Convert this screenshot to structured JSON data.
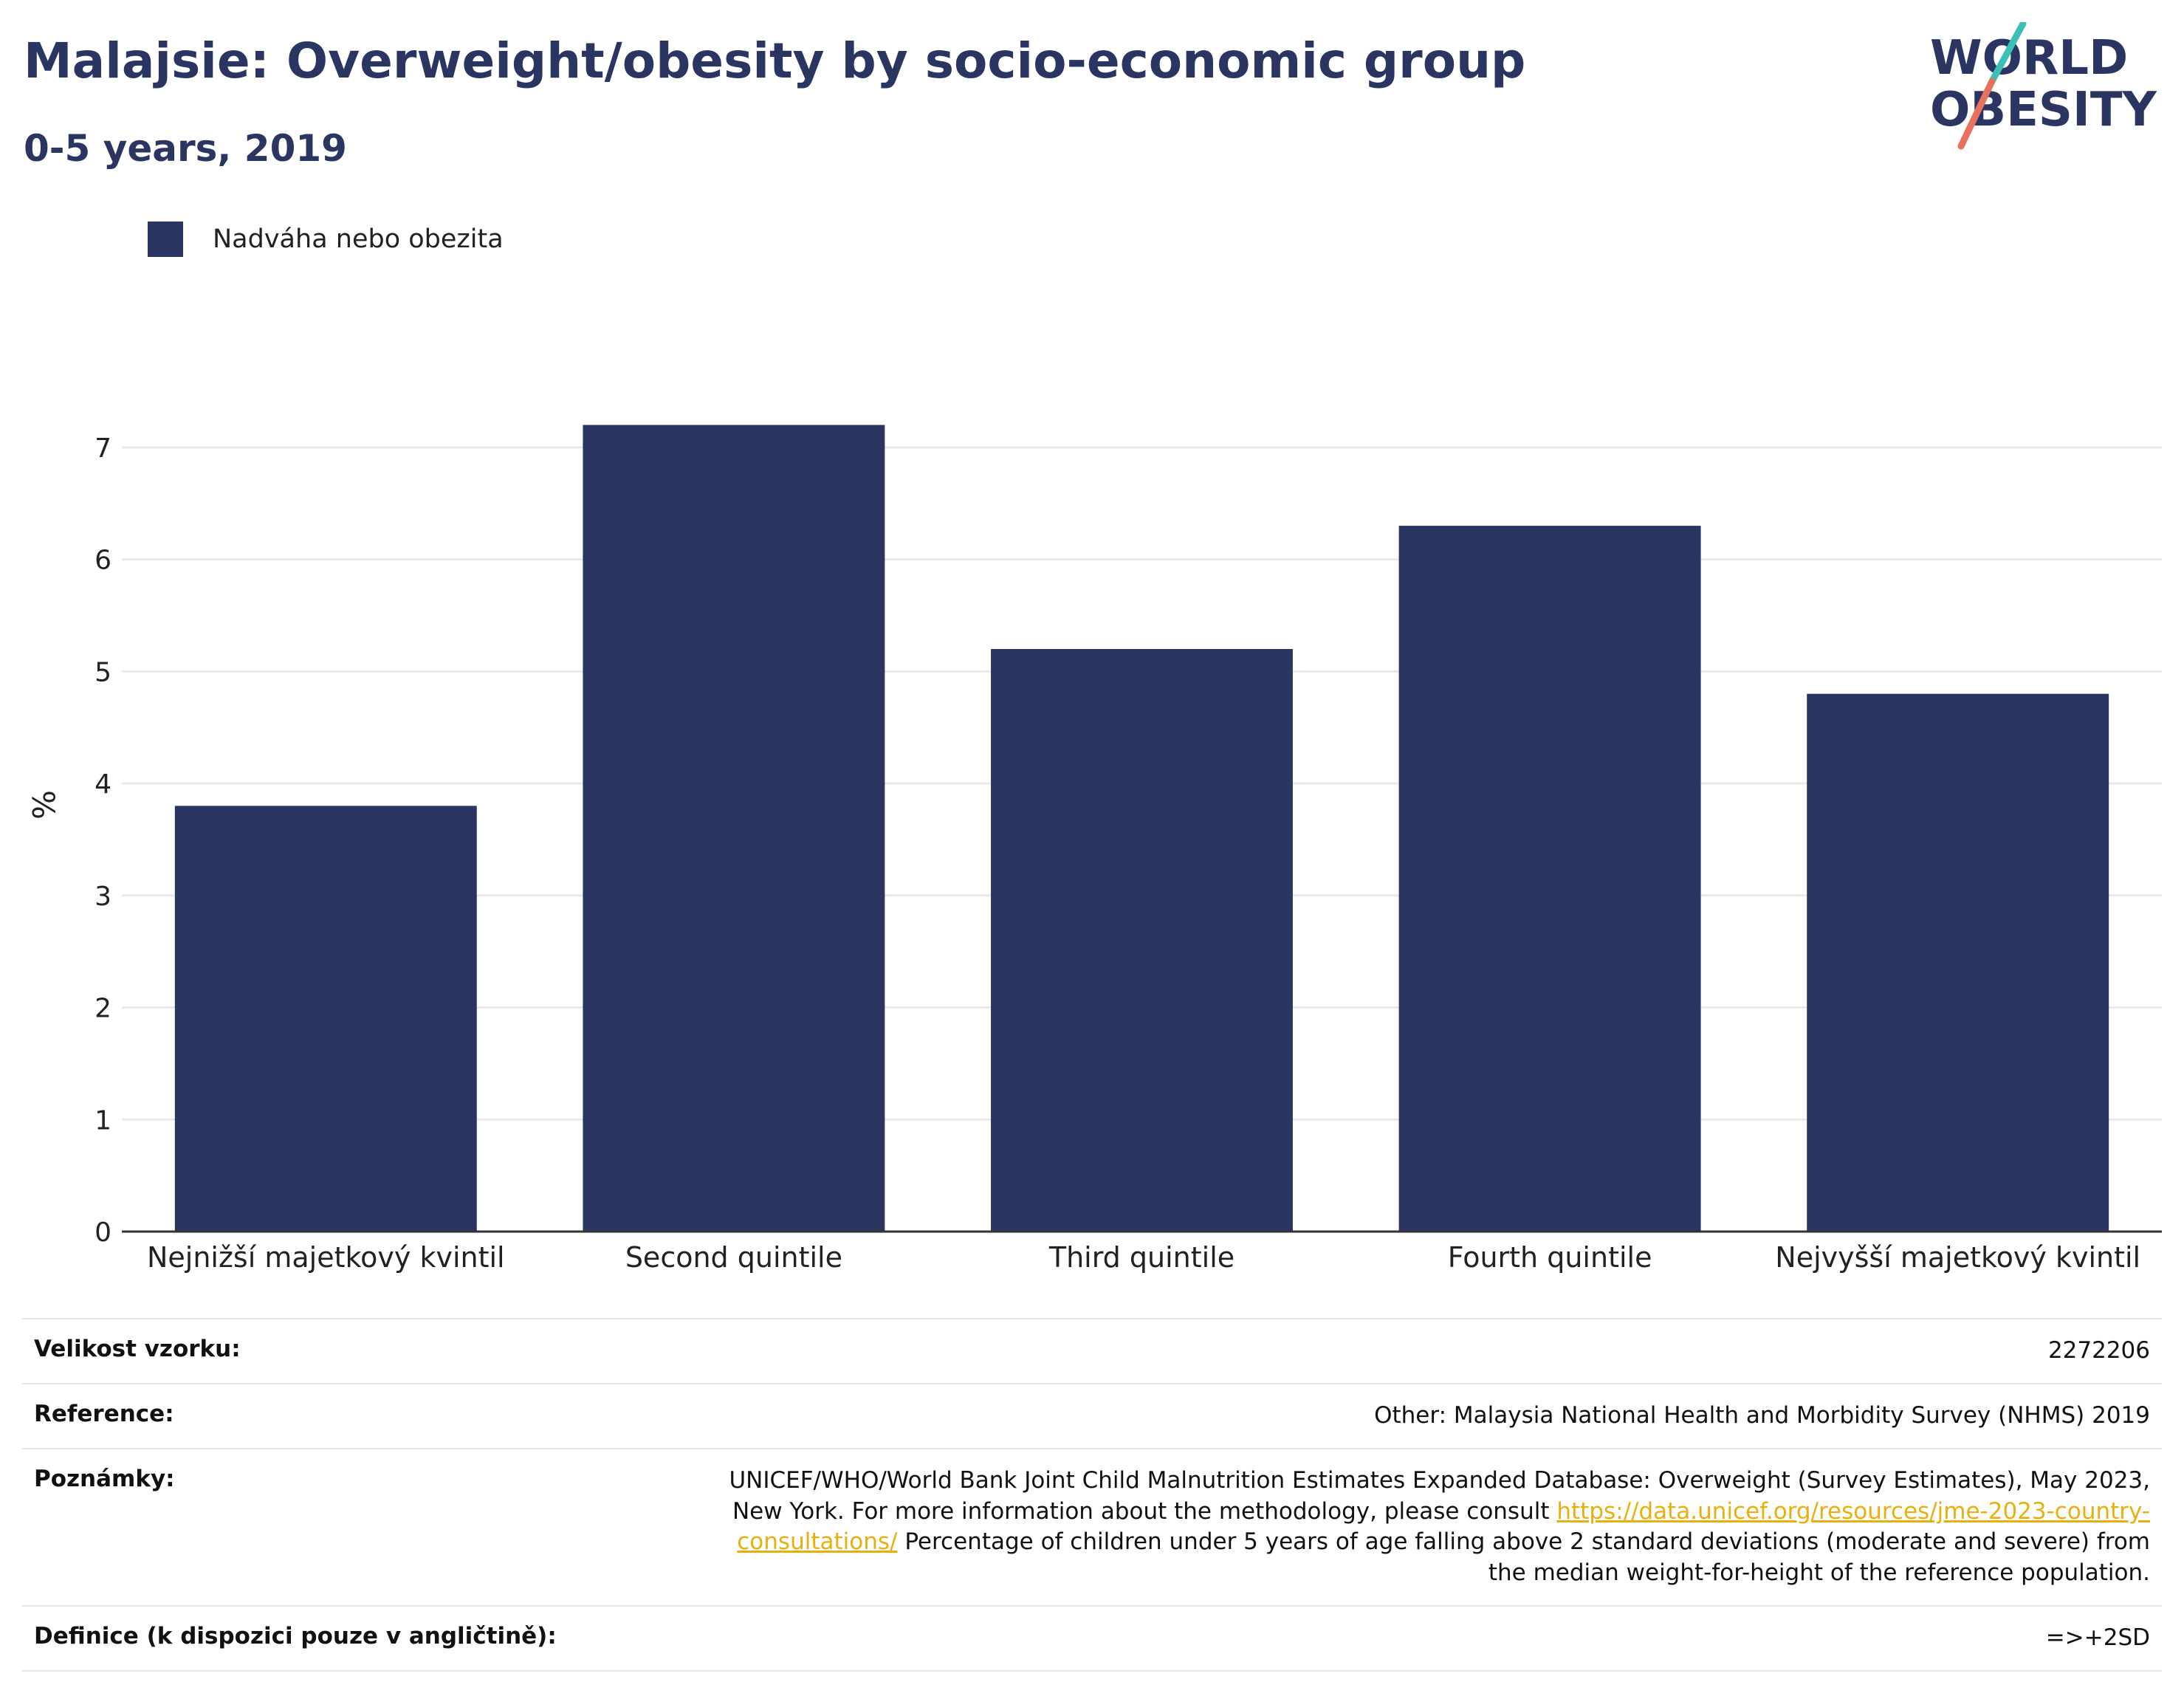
{
  "header": {
    "title": "Malajsie: Overweight/obesity by socio-economic group",
    "subtitle": "0-5 years, 2019",
    "logo": {
      "line1": "WORLD",
      "line2": "OBESITY",
      "accent_colors": [
        "#3bbfb6",
        "#e8705f"
      ]
    }
  },
  "legend": {
    "label": "Nadváha nebo obezita",
    "color": "#2a3561"
  },
  "chart_data": {
    "type": "bar",
    "categories": [
      "Nejnižší majetkový kvintil",
      "Second quintile",
      "Third quintile",
      "Fourth quintile",
      "Nejvyšší majetkový kvintil"
    ],
    "series": [
      {
        "name": "Nadváha nebo obezita",
        "values": [
          3.8,
          7.2,
          5.2,
          6.3,
          4.8
        ],
        "color": "#2a3561"
      }
    ],
    "ylabel": "%",
    "ylim": [
      0,
      7.5
    ],
    "yticks": [
      "0",
      "1",
      "2",
      "3",
      "4",
      "5",
      "6",
      "7"
    ],
    "grid": true,
    "legend_position": "top-left"
  },
  "info": {
    "sample_label": "Velikost vzorku:",
    "sample_value": "2272206",
    "reference_label": "Reference:",
    "reference_value": "Other: Malaysia National Health and Morbidity Survey (NHMS) 2019",
    "notes_label": "Poznámky:",
    "notes_text_1": "UNICEF/WHO/World Bank Joint Child Malnutrition Estimates Expanded Database: Overweight (Survey Estimates), May 2023, New York. For more information about the methodology, please consult",
    "notes_link": "https://data.unicef.org/resources/jme-2023-country-consultations/",
    "notes_text_2": "Percentage of children under 5 years of age falling above 2 standard deviations (moderate and severe) from the median weight-for-height of the reference population.",
    "definition_label": "Definice (k dispozici pouze v angličtině):",
    "definition_value": "=>+2SD"
  }
}
